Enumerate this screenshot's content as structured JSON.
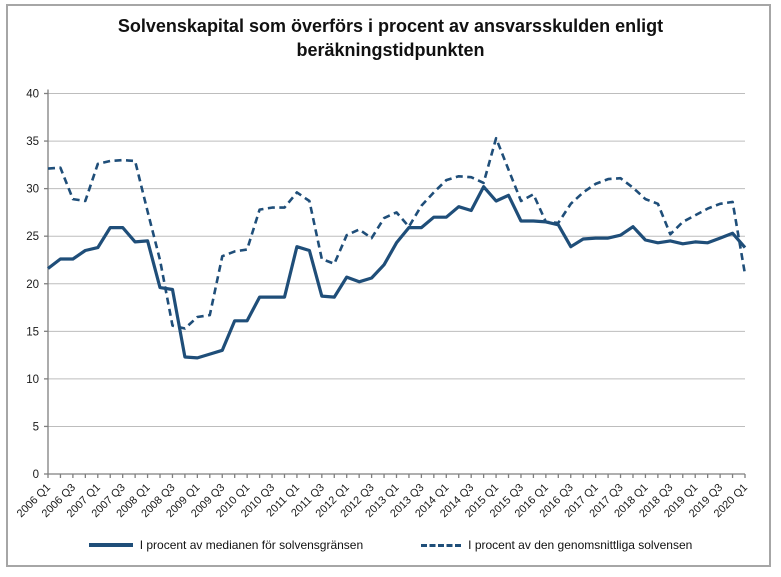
{
  "title": "Solvenskapital som överförs i procent av ansvarsskulden enligt beräkningstidpunkten",
  "legend": {
    "median_label": "I procent av medianen för solvensgränsen",
    "average_label": "I procent av den genomsnittliga solvensen"
  },
  "colors": {
    "series": "#1f4e79",
    "gridline": "#bdbdbd",
    "axis": "#7f7f7f",
    "text": "#1a1a1a"
  },
  "chart_data": {
    "type": "line",
    "title": "Solvenskapital som överförs i procent av ansvarsskulden enligt beräkningstidpunkten",
    "xlabel": "",
    "ylabel": "",
    "ylim": [
      0,
      40
    ],
    "y_tick_step": 5,
    "y_tick_labels": [
      "0",
      "5",
      "10",
      "15",
      "20",
      "25",
      "30",
      "35",
      "40"
    ],
    "x_tick_labels_shown": [
      "2006 Q1",
      "2006 Q3",
      "2007 Q1",
      "2007 Q3",
      "2008 Q1",
      "2008 Q3",
      "2009 Q1",
      "2009 Q3",
      "2010 Q1",
      "2010 Q3",
      "2011 Q1",
      "2011 Q3",
      "2012 Q1",
      "2012 Q3",
      "2013 Q1",
      "2013 Q3",
      "2014 Q1",
      "2014 Q3",
      "2015 Q1",
      "2015 Q3",
      "2016 Q1",
      "2016 Q3",
      "2017 Q1",
      "2017 Q3",
      "2018 Q1",
      "2018 Q3",
      "2019 Q1",
      "2019 Q3",
      "2020 Q1"
    ],
    "x_label_every_n_points": 2,
    "grid": "horizontal",
    "legend_position": "bottom",
    "quarters": [
      "2006 Q1",
      "2006 Q2",
      "2006 Q3",
      "2006 Q4",
      "2007 Q1",
      "2007 Q2",
      "2007 Q3",
      "2007 Q4",
      "2008 Q1",
      "2008 Q2",
      "2008 Q3",
      "2008 Q4",
      "2009 Q1",
      "2009 Q2",
      "2009 Q3",
      "2009 Q4",
      "2010 Q1",
      "2010 Q2",
      "2010 Q3",
      "2010 Q4",
      "2011 Q1",
      "2011 Q2",
      "2011 Q3",
      "2011 Q4",
      "2012 Q1",
      "2012 Q2",
      "2012 Q3",
      "2012 Q4",
      "2013 Q1",
      "2013 Q2",
      "2013 Q3",
      "2013 Q4",
      "2014 Q1",
      "2014 Q2",
      "2014 Q3",
      "2014 Q4",
      "2015 Q1",
      "2015 Q2",
      "2015 Q3",
      "2015 Q4",
      "2016 Q1",
      "2016 Q2",
      "2016 Q3",
      "2016 Q4",
      "2017 Q1",
      "2017 Q2",
      "2017 Q3",
      "2017 Q4",
      "2018 Q1",
      "2018 Q2",
      "2018 Q3",
      "2018 Q4",
      "2019 Q1",
      "2019 Q2",
      "2019 Q3",
      "2019 Q4",
      "2020 Q1"
    ],
    "series": [
      {
        "name": "I procent av medianen för solvensgränsen",
        "style": "solid",
        "values": [
          21.6,
          22.6,
          22.6,
          23.5,
          23.8,
          25.9,
          25.9,
          24.4,
          24.5,
          19.6,
          19.4,
          12.3,
          12.2,
          12.6,
          13.0,
          16.1,
          16.1,
          18.6,
          18.6,
          18.6,
          23.9,
          23.5,
          18.7,
          18.6,
          20.7,
          20.2,
          20.6,
          22.0,
          24.3,
          25.9,
          25.9,
          27.0,
          27.0,
          28.1,
          27.7,
          30.2,
          28.7,
          29.3,
          26.6,
          26.6,
          26.5,
          26.2,
          23.9,
          24.7,
          24.8,
          24.8,
          25.1,
          26.0,
          24.6,
          24.3,
          24.5,
          24.2,
          24.4,
          24.3,
          24.8,
          25.3,
          23.8
        ]
      },
      {
        "name": "I procent av den genomsnittliga solvensen",
        "style": "dashed",
        "values": [
          32.1,
          32.2,
          28.9,
          28.7,
          32.6,
          32.9,
          33.0,
          32.9,
          27.6,
          22.5,
          15.6,
          15.3,
          16.5,
          16.7,
          22.9,
          23.4,
          23.6,
          27.8,
          28.0,
          28.0,
          29.6,
          28.7,
          22.6,
          22.1,
          25.1,
          25.7,
          24.8,
          26.9,
          27.5,
          26.0,
          28.2,
          29.6,
          30.9,
          31.3,
          31.2,
          30.6,
          35.3,
          32.0,
          28.7,
          29.4,
          26.5,
          26.4,
          28.4,
          29.6,
          30.5,
          31.0,
          31.1,
          30.1,
          28.9,
          28.4,
          25.2,
          26.5,
          27.2,
          27.9,
          28.4,
          28.6,
          21.0
        ]
      }
    ]
  }
}
